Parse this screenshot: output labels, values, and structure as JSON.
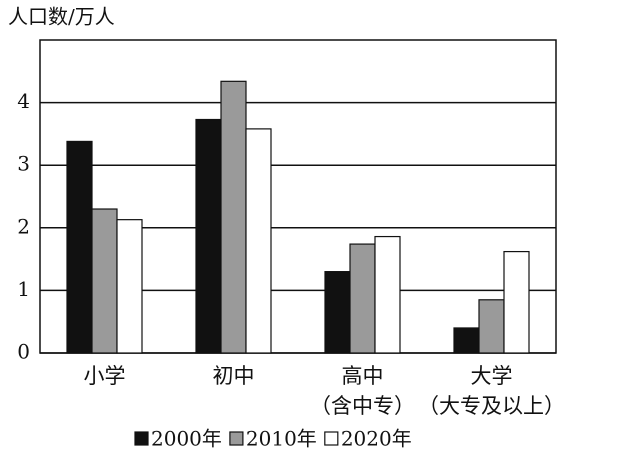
{
  "chart_data": {
    "type": "bar",
    "y_label": "人口数/万人",
    "categories": [
      "小学",
      "初中",
      "高中\n（含中专）",
      "大学\n（大专及以上）"
    ],
    "series": [
      {
        "name": "2000年",
        "color": "#111111",
        "values": [
          3.38,
          3.73,
          1.3,
          0.4
        ]
      },
      {
        "name": "2010年",
        "color": "#9a9a9a",
        "values": [
          2.3,
          4.34,
          1.74,
          0.85
        ]
      },
      {
        "name": "2020年",
        "color": "#ffffff",
        "values": [
          2.13,
          3.58,
          1.86,
          1.62
        ]
      }
    ],
    "ylim": [
      0,
      5
    ],
    "yticks": [
      0,
      1,
      2,
      3,
      4
    ],
    "grid": true
  }
}
